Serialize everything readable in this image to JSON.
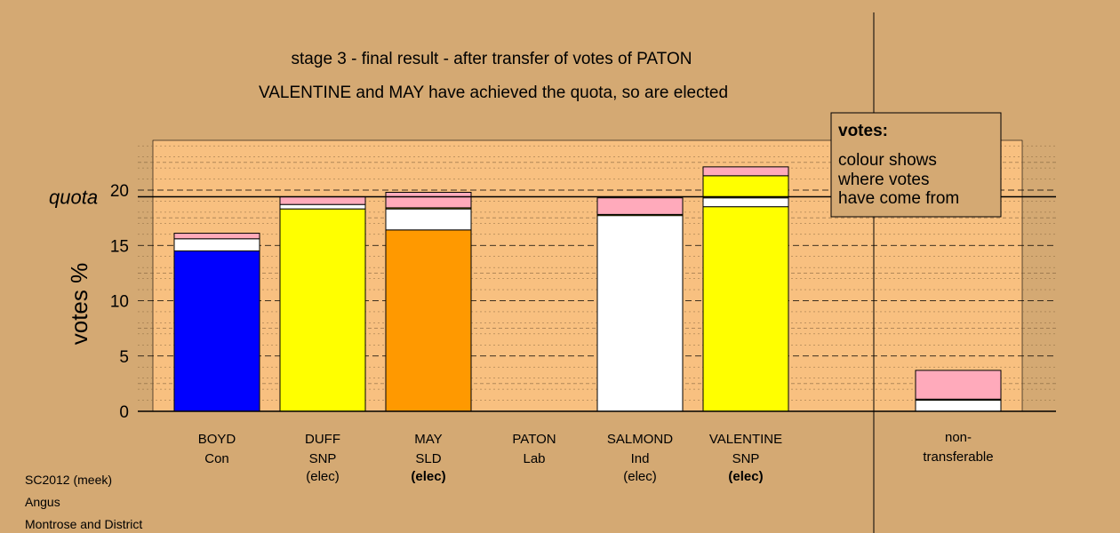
{
  "title_line1": "stage 3 - final result - after transfer of votes of PATON",
  "title_line2": "VALENTINE and MAY have achieved the quota, so are elected",
  "legend": {
    "heading": "votes:",
    "lines": [
      "colour shows",
      "where votes",
      "have come from"
    ]
  },
  "footer": [
    "SC2012 (meek)",
    "Angus",
    "Montrose and District"
  ],
  "colors": {
    "background": "#d4a973",
    "plot_area": "#f8c080",
    "Con": "#0000ff",
    "SNP": "#ffff00",
    "SLD": "#ff9900",
    "Ind": "#ffffff",
    "Lab": "#ffaabb",
    "other": "#ffffff"
  },
  "chart_data": {
    "type": "bar",
    "stacked": true,
    "ylabel": "votes %",
    "ylim": [
      0,
      24.5
    ],
    "yticks": [
      0,
      5,
      10,
      15,
      20
    ],
    "quota": 19.4,
    "quota_label": "quota",
    "grid": "dashed horizontal lines",
    "candidates": [
      {
        "name": "BOYD",
        "party": "Con",
        "status": "",
        "segments": [
          {
            "source": "Con",
            "value": 14.5
          },
          {
            "source": "other",
            "value": 1.1
          },
          {
            "source": "Lab",
            "value": 0.5
          }
        ]
      },
      {
        "name": "DUFF",
        "party": "SNP",
        "status": "(elec)",
        "segments": [
          {
            "source": "SNP",
            "value": 18.3
          },
          {
            "source": "other",
            "value": 0.4
          },
          {
            "source": "Lab",
            "value": 0.7
          }
        ]
      },
      {
        "name": "MAY",
        "party": "SLD",
        "status": "(elec)",
        "status_bold": true,
        "segments": [
          {
            "source": "SLD",
            "value": 16.4
          },
          {
            "source": "other",
            "value": 1.9
          },
          {
            "source": "SNP",
            "value": 0.1
          },
          {
            "source": "Lab",
            "value": 1.4
          }
        ]
      },
      {
        "name": "PATON",
        "party": "Lab",
        "status": "",
        "segments": []
      },
      {
        "name": "SALMOND",
        "party": "Ind",
        "status": "(elec)",
        "segments": [
          {
            "source": "Ind",
            "value": 17.7
          },
          {
            "source": "SNP",
            "value": 0.1
          },
          {
            "source": "Lab",
            "value": 1.5
          }
        ]
      },
      {
        "name": "VALENTINE",
        "party": "SNP",
        "status": "(elec)",
        "status_bold": true,
        "segments": [
          {
            "source": "SNP",
            "value": 18.5
          },
          {
            "source": "other",
            "value": 0.8
          },
          {
            "source": "SNP",
            "value": 2.0
          },
          {
            "source": "Lab",
            "value": 0.8
          }
        ]
      }
    ],
    "non_transferable": {
      "label_lines": [
        "non-",
        "transferable"
      ],
      "segments": [
        {
          "source": "other",
          "value": 1.0
        },
        {
          "source": "SNP",
          "value": 0.1
        },
        {
          "source": "Lab",
          "value": 2.6
        }
      ]
    }
  }
}
